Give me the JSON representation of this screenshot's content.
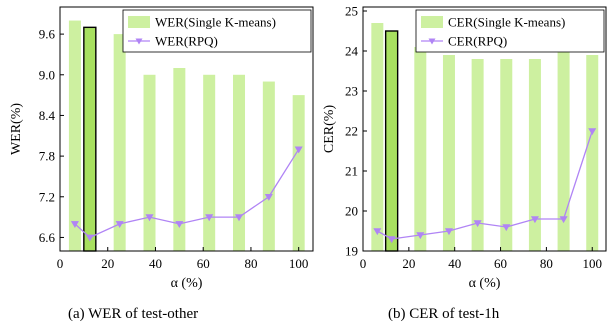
{
  "chart_data": [
    {
      "type": "bar",
      "caption": "(a) WER of test-other",
      "xlabel": "α (%)",
      "ylabel": "WER(%)",
      "xlim": [
        0,
        106
      ],
      "ylim": [
        6.4,
        10.0
      ],
      "xticks": [
        0,
        20,
        40,
        60,
        80,
        100
      ],
      "yticks": [
        6.6,
        7.2,
        7.8,
        8.4,
        9.0,
        9.6
      ],
      "ytick_labels": [
        "6.6",
        "7.2",
        "7.8",
        "8.4",
        "9.0",
        "9.6"
      ],
      "legend_position": "top-right",
      "x": [
        6.25,
        12.5,
        25,
        37.5,
        50,
        62.5,
        75,
        87.5,
        100
      ],
      "highlighted_index": 1,
      "series": [
        {
          "name": "WER(Single K-means)",
          "kind": "bar",
          "values": [
            9.8,
            9.7,
            9.6,
            9.0,
            9.1,
            9.0,
            9.0,
            8.9,
            8.7
          ]
        },
        {
          "name": "WER(RPQ)",
          "kind": "line",
          "values": [
            6.8,
            6.6,
            6.8,
            6.9,
            6.8,
            6.9,
            6.9,
            7.2,
            7.9
          ]
        }
      ]
    },
    {
      "type": "bar",
      "caption": "(b) CER of test-1h",
      "xlabel": "α (%)",
      "ylabel": "CER(%)",
      "xlim": [
        0,
        106
      ],
      "ylim": [
        19,
        25.1
      ],
      "xticks": [
        0,
        20,
        40,
        60,
        80,
        100
      ],
      "yticks": [
        19,
        20,
        21,
        22,
        23,
        24,
        25
      ],
      "ytick_labels": [
        "19",
        "20",
        "21",
        "22",
        "23",
        "24",
        "25"
      ],
      "legend_position": "top-right",
      "x": [
        6.25,
        12.5,
        25,
        37.5,
        50,
        62.5,
        75,
        87.5,
        100
      ],
      "highlighted_index": 1,
      "series": [
        {
          "name": "CER(Single K-means)",
          "kind": "bar",
          "values": [
            24.7,
            24.5,
            24.1,
            23.9,
            23.8,
            23.8,
            23.8,
            24.0,
            23.9
          ]
        },
        {
          "name": "CER(RPQ)",
          "kind": "line",
          "values": [
            19.5,
            19.3,
            19.4,
            19.5,
            19.7,
            19.6,
            19.8,
            19.8,
            22.0
          ]
        }
      ]
    }
  ],
  "colors": {
    "bar_fill": "#cdf0a0",
    "bar_highlight_fill": "#a8e060",
    "line": "#b084f5",
    "marker": "#b084f5",
    "axis": "#000000"
  }
}
